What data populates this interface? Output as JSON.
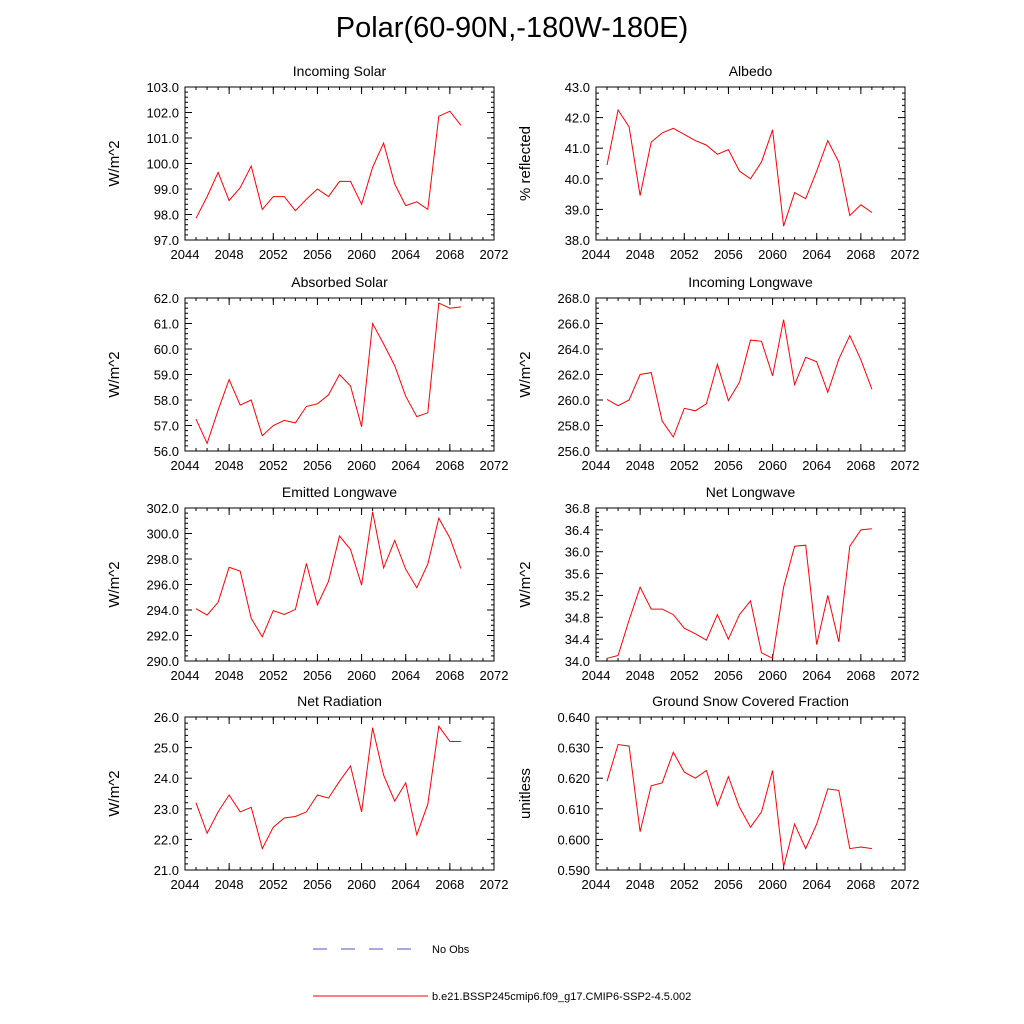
{
  "figure": {
    "title": "Polar(60-90N,-180W-180E)"
  },
  "legend": {
    "obs_label": "No Obs",
    "model_label": "b.e21.BSSP245cmip6.f09_g17.CMIP6-SSP2-4.5.002",
    "obs_color": "#5050c8",
    "model_color": "#ff0000"
  },
  "chart_data": [
    {
      "type": "line",
      "title": "Incoming Solar",
      "ylabel": "W/m^2",
      "xlabel": "",
      "xlim": [
        2044,
        2072
      ],
      "xticks": [
        2044,
        2048,
        2052,
        2056,
        2060,
        2064,
        2068,
        2072
      ],
      "ylim": [
        97.0,
        103.0
      ],
      "yticks": [
        97.0,
        98.0,
        99.0,
        100.0,
        101.0,
        102.0,
        103.0
      ],
      "ytick_labels": [
        "97.0",
        "98.0",
        "99.0",
        "100.0",
        "101.0",
        "102.0",
        "103.0"
      ],
      "series": [
        {
          "name": "b.e21.BSSP245cmip6.f09_g17.CMIP6-SSP2-4.5.002",
          "x": [
            2045,
            2046,
            2047,
            2048,
            2049,
            2050,
            2051,
            2052,
            2053,
            2054,
            2055,
            2056,
            2057,
            2058,
            2059,
            2060,
            2061,
            2062,
            2063,
            2064,
            2065,
            2066,
            2067,
            2068,
            2069
          ],
          "y": [
            97.85,
            98.7,
            99.65,
            98.55,
            99.05,
            99.9,
            98.2,
            98.7,
            98.7,
            98.15,
            98.6,
            99.0,
            98.7,
            99.3,
            99.3,
            98.4,
            99.85,
            100.8,
            99.2,
            98.35,
            98.5,
            98.2,
            101.85,
            102.05,
            101.5
          ]
        }
      ]
    },
    {
      "type": "line",
      "title": "Albedo",
      "ylabel": "% reflected",
      "xlabel": "",
      "xlim": [
        2044,
        2072
      ],
      "xticks": [
        2044,
        2048,
        2052,
        2056,
        2060,
        2064,
        2068,
        2072
      ],
      "ylim": [
        38.0,
        43.0
      ],
      "yticks": [
        38.0,
        39.0,
        40.0,
        41.0,
        42.0,
        43.0
      ],
      "ytick_labels": [
        "38.0",
        "39.0",
        "40.0",
        "41.0",
        "42.0",
        "43.0"
      ],
      "series": [
        {
          "name": "b.e21.BSSP245cmip6.f09_g17.CMIP6-SSP2-4.5.002",
          "x": [
            2045,
            2046,
            2047,
            2048,
            2049,
            2050,
            2051,
            2052,
            2053,
            2054,
            2055,
            2056,
            2057,
            2058,
            2059,
            2060,
            2061,
            2062,
            2063,
            2064,
            2065,
            2066,
            2067,
            2068,
            2069
          ],
          "y": [
            40.45,
            42.25,
            41.7,
            39.45,
            41.2,
            41.5,
            41.65,
            41.45,
            41.25,
            41.1,
            40.8,
            40.95,
            40.25,
            40.0,
            40.55,
            41.6,
            38.45,
            39.55,
            39.35,
            40.25,
            41.25,
            40.55,
            38.8,
            39.15,
            38.9
          ]
        }
      ]
    },
    {
      "type": "line",
      "title": "Absorbed Solar",
      "ylabel": "W/m^2",
      "xlabel": "",
      "xlim": [
        2044,
        2072
      ],
      "xticks": [
        2044,
        2048,
        2052,
        2056,
        2060,
        2064,
        2068,
        2072
      ],
      "ylim": [
        56.0,
        62.0
      ],
      "yticks": [
        56.0,
        57.0,
        58.0,
        59.0,
        60.0,
        61.0,
        62.0
      ],
      "ytick_labels": [
        "56.0",
        "57.0",
        "58.0",
        "59.0",
        "60.0",
        "61.0",
        "62.0"
      ],
      "series": [
        {
          "name": "b.e21.BSSP245cmip6.f09_g17.CMIP6-SSP2-4.5.002",
          "x": [
            2045,
            2046,
            2047,
            2048,
            2049,
            2050,
            2051,
            2052,
            2053,
            2054,
            2055,
            2056,
            2057,
            2058,
            2059,
            2060,
            2061,
            2062,
            2063,
            2064,
            2065,
            2066,
            2067,
            2068,
            2069
          ],
          "y": [
            57.25,
            56.3,
            57.6,
            58.8,
            57.8,
            58.0,
            56.6,
            57.0,
            57.2,
            57.1,
            57.75,
            57.85,
            58.2,
            59.0,
            58.55,
            56.95,
            61.0,
            60.2,
            59.35,
            58.15,
            57.35,
            57.5,
            61.8,
            61.6,
            61.65
          ]
        }
      ]
    },
    {
      "type": "line",
      "title": "Incoming Longwave",
      "ylabel": "W/m^2",
      "xlabel": "",
      "xlim": [
        2044,
        2072
      ],
      "xticks": [
        2044,
        2048,
        2052,
        2056,
        2060,
        2064,
        2068,
        2072
      ],
      "ylim": [
        256.0,
        268.0
      ],
      "yticks": [
        256.0,
        258.0,
        260.0,
        262.0,
        264.0,
        266.0,
        268.0
      ],
      "ytick_labels": [
        "256.0",
        "258.0",
        "260.0",
        "262.0",
        "264.0",
        "266.0",
        "268.0"
      ],
      "series": [
        {
          "name": "b.e21.BSSP245cmip6.f09_g17.CMIP6-SSP2-4.5.002",
          "x": [
            2045,
            2046,
            2047,
            2048,
            2049,
            2050,
            2051,
            2052,
            2053,
            2054,
            2055,
            2056,
            2057,
            2058,
            2059,
            2060,
            2061,
            2062,
            2063,
            2064,
            2065,
            2066,
            2067,
            2068,
            2069
          ],
          "y": [
            260.05,
            259.55,
            260.0,
            262.0,
            262.15,
            258.35,
            257.1,
            259.35,
            259.15,
            259.7,
            262.8,
            259.95,
            261.4,
            264.7,
            264.6,
            261.9,
            266.3,
            261.2,
            263.35,
            263.0,
            260.6,
            263.2,
            265.05,
            263.15,
            260.85
          ]
        }
      ]
    },
    {
      "type": "line",
      "title": "Emitted Longwave",
      "ylabel": "W/m^2",
      "xlabel": "",
      "xlim": [
        2044,
        2072
      ],
      "xticks": [
        2044,
        2048,
        2052,
        2056,
        2060,
        2064,
        2068,
        2072
      ],
      "ylim": [
        290.0,
        302.0
      ],
      "yticks": [
        290.0,
        292.0,
        294.0,
        296.0,
        298.0,
        300.0,
        302.0
      ],
      "ytick_labels": [
        "290.0",
        "292.0",
        "294.0",
        "296.0",
        "298.0",
        "300.0",
        "302.0"
      ],
      "series": [
        {
          "name": "b.e21.BSSP245cmip6.f09_g17.CMIP6-SSP2-4.5.002",
          "x": [
            2045,
            2046,
            2047,
            2048,
            2049,
            2050,
            2051,
            2052,
            2053,
            2054,
            2055,
            2056,
            2057,
            2058,
            2059,
            2060,
            2061,
            2062,
            2063,
            2064,
            2065,
            2066,
            2067,
            2068,
            2069
          ],
          "y": [
            294.1,
            293.6,
            294.6,
            297.35,
            297.05,
            293.35,
            291.9,
            293.95,
            293.65,
            294.05,
            297.65,
            294.4,
            296.25,
            299.8,
            298.75,
            295.95,
            301.7,
            297.3,
            299.45,
            297.2,
            295.75,
            297.6,
            301.2,
            299.65,
            297.25
          ]
        }
      ]
    },
    {
      "type": "line",
      "title": "Net Longwave",
      "ylabel": "W/m^2",
      "xlabel": "",
      "xlim": [
        2044,
        2072
      ],
      "xticks": [
        2044,
        2048,
        2052,
        2056,
        2060,
        2064,
        2068,
        2072
      ],
      "ylim": [
        34.0,
        36.8
      ],
      "yticks": [
        34.0,
        34.4,
        34.8,
        35.2,
        35.6,
        36.0,
        36.4,
        36.8
      ],
      "ytick_labels": [
        "34.0",
        "34.4",
        "34.8",
        "35.2",
        "35.6",
        "36.0",
        "36.4",
        "36.8"
      ],
      "series": [
        {
          "name": "b.e21.BSSP245cmip6.f09_g17.CMIP6-SSP2-4.5.002",
          "x": [
            2045,
            2046,
            2047,
            2048,
            2049,
            2050,
            2051,
            2052,
            2053,
            2054,
            2055,
            2056,
            2057,
            2058,
            2059,
            2060,
            2061,
            2062,
            2063,
            2064,
            2065,
            2066,
            2067,
            2068,
            2069
          ],
          "y": [
            34.05,
            34.1,
            34.75,
            35.35,
            34.95,
            34.95,
            34.85,
            34.6,
            34.5,
            34.38,
            34.85,
            34.4,
            34.85,
            35.1,
            34.15,
            34.05,
            35.35,
            36.1,
            36.12,
            34.3,
            35.2,
            34.35,
            36.1,
            36.4,
            36.42
          ]
        }
      ]
    },
    {
      "type": "line",
      "title": "Net Radiation",
      "ylabel": "W/m^2",
      "xlabel": "",
      "xlim": [
        2044,
        2072
      ],
      "xticks": [
        2044,
        2048,
        2052,
        2056,
        2060,
        2064,
        2068,
        2072
      ],
      "ylim": [
        21.0,
        26.0
      ],
      "yticks": [
        21.0,
        22.0,
        23.0,
        24.0,
        25.0,
        26.0
      ],
      "ytick_labels": [
        "21.0",
        "22.0",
        "23.0",
        "24.0",
        "25.0",
        "26.0"
      ],
      "series": [
        {
          "name": "b.e21.BSSP245cmip6.f09_g17.CMIP6-SSP2-4.5.002",
          "x": [
            2045,
            2046,
            2047,
            2048,
            2049,
            2050,
            2051,
            2052,
            2053,
            2054,
            2055,
            2056,
            2057,
            2058,
            2059,
            2060,
            2061,
            2062,
            2063,
            2064,
            2065,
            2066,
            2067,
            2068,
            2069
          ],
          "y": [
            23.2,
            22.2,
            22.9,
            23.45,
            22.9,
            23.05,
            21.7,
            22.4,
            22.7,
            22.75,
            22.9,
            23.45,
            23.35,
            23.9,
            24.4,
            22.9,
            25.65,
            24.1,
            23.25,
            23.85,
            22.15,
            23.15,
            25.7,
            25.2,
            25.2
          ]
        }
      ]
    },
    {
      "type": "line",
      "title": "Ground Snow Covered Fraction",
      "ylabel": "unitless",
      "xlabel": "",
      "xlim": [
        2044,
        2072
      ],
      "xticks": [
        2044,
        2048,
        2052,
        2056,
        2060,
        2064,
        2068,
        2072
      ],
      "ylim": [
        0.59,
        0.64
      ],
      "yticks": [
        0.59,
        0.6,
        0.61,
        0.62,
        0.63,
        0.64
      ],
      "ytick_labels": [
        "0.590",
        "0.600",
        "0.610",
        "0.620",
        "0.630",
        "0.640"
      ],
      "series": [
        {
          "name": "b.e21.BSSP245cmip6.f09_g17.CMIP6-SSP2-4.5.002",
          "x": [
            2045,
            2046,
            2047,
            2048,
            2049,
            2050,
            2051,
            2052,
            2053,
            2054,
            2055,
            2056,
            2057,
            2058,
            2059,
            2060,
            2061,
            2062,
            2063,
            2064,
            2065,
            2066,
            2067,
            2068,
            2069
          ],
          "y": [
            0.619,
            0.631,
            0.6305,
            0.6025,
            0.6175,
            0.6185,
            0.6285,
            0.622,
            0.62,
            0.6225,
            0.611,
            0.6205,
            0.6105,
            0.604,
            0.609,
            0.6225,
            0.591,
            0.605,
            0.597,
            0.605,
            0.6165,
            0.616,
            0.597,
            0.5975,
            0.597
          ]
        }
      ]
    }
  ]
}
